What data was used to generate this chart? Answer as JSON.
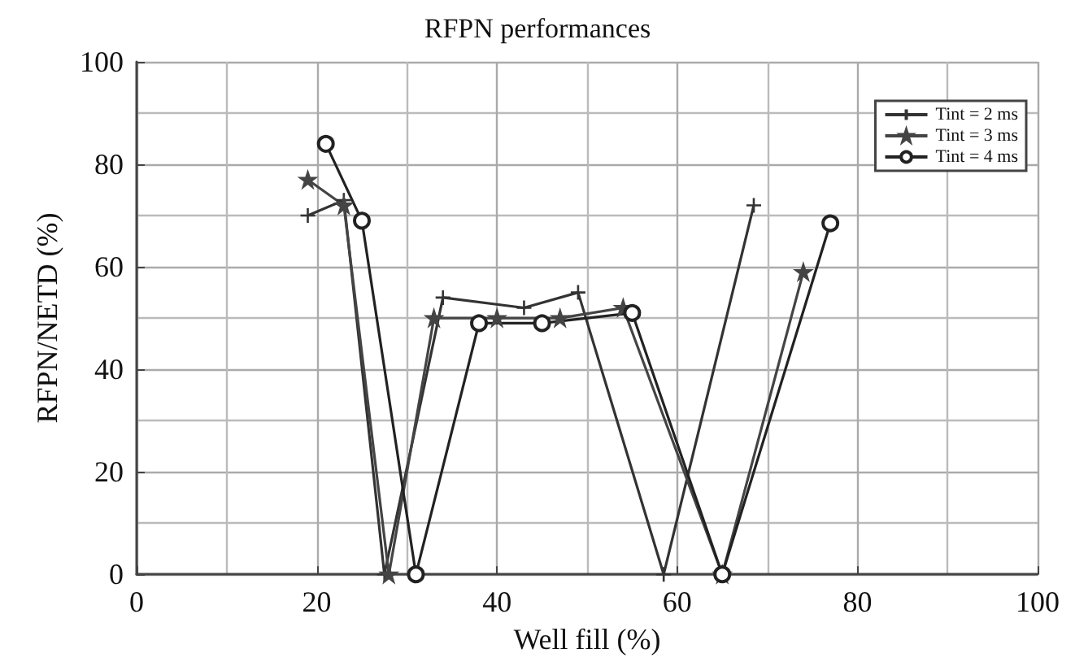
{
  "chart_data": {
    "type": "line",
    "title": "RFPN performances",
    "xlabel": "Well fill (%)",
    "ylabel": "RFPN/NETD (%)",
    "xlim": [
      0,
      100
    ],
    "xticks": [
      0,
      20,
      40,
      60,
      80,
      100
    ],
    "ylim": [
      0,
      100
    ],
    "yticks": [
      0,
      20,
      40,
      60,
      80,
      100
    ],
    "grid": true,
    "legend": "top right",
    "line_style": "solid",
    "series": [
      {
        "name": "Tint = 2 ms",
        "color": "#333333",
        "marker": "cross",
        "x": [
          19,
          23,
          27.5,
          34,
          43,
          49,
          58.5,
          68.5
        ],
        "values": [
          70,
          73,
          0,
          54,
          52,
          55,
          0,
          72
        ]
      },
      {
        "name": "Tint = 3 ms",
        "color": "#444444",
        "marker": "star",
        "x": [
          19,
          23,
          28,
          33,
          40,
          47,
          54,
          65,
          74
        ],
        "values": [
          77,
          72,
          0,
          50,
          50,
          50,
          52,
          0,
          59
        ]
      },
      {
        "name": "Tint = 4 ms",
        "color": "#222222",
        "marker": "circle",
        "x": [
          21,
          25,
          31,
          38,
          45,
          55,
          65,
          77
        ],
        "values": [
          84,
          69,
          0,
          49,
          49,
          51,
          0,
          68.5
        ]
      }
    ]
  }
}
